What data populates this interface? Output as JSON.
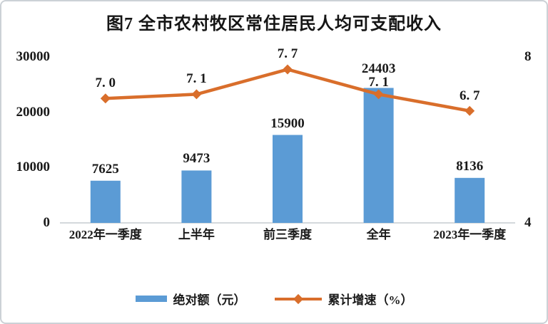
{
  "chart_data": {
    "type": "bar",
    "subtype": "bar-line-combo",
    "title": "图7  全市农村牧区常住居民人均可支配收入",
    "categories": [
      "2022年一季度",
      "上半年",
      "前三季度",
      "全年",
      "2023年一季度"
    ],
    "series": [
      {
        "name": "绝对额（元）",
        "type": "bar",
        "axis": "left",
        "values": [
          7625,
          9473,
          15900,
          24403,
          8136
        ],
        "color": "#5B9BD5"
      },
      {
        "name": "累计增速（%）",
        "type": "line",
        "axis": "right",
        "values": [
          7.0,
          7.1,
          7.7,
          7.1,
          6.7
        ],
        "labels": [
          "7. 0",
          "7. 1",
          "7. 7",
          "7. 1",
          "6. 7"
        ],
        "color": "#D96E2B",
        "marker": "diamond"
      }
    ],
    "left_axis": {
      "min": 0,
      "max": 30000,
      "ticks": [
        "0",
        "10000",
        "20000",
        "30000"
      ]
    },
    "right_axis": {
      "min": 4,
      "max": 8,
      "ticks": [
        "4",
        "8"
      ]
    },
    "legend": [
      {
        "label": "绝对额（元）",
        "marker": "bar",
        "color": "#5B9BD5"
      },
      {
        "label": "累计增速（%）",
        "marker": "line-diamond",
        "color": "#D96E2B"
      }
    ],
    "legend_position": "bottom",
    "grid": "off",
    "colors": {
      "bar": "#5B9BD5",
      "line": "#D96E2B",
      "axis_line": "#D4D8DC",
      "text": "#1A1A1A",
      "frame_border": "#CCD1D6"
    }
  }
}
